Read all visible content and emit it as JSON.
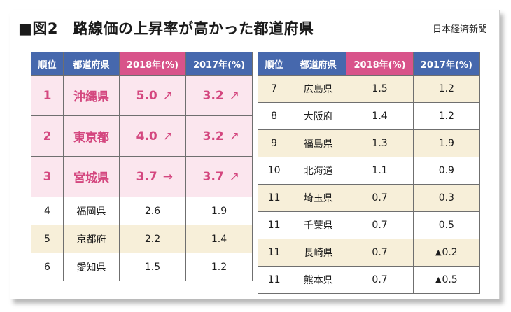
{
  "header": {
    "title": "■図2　路線価の上昇率が高かった都道府県",
    "source": "日本経済新聞"
  },
  "columns": {
    "rank": "順位",
    "prefecture": "都道府県",
    "y2018": "2018年(%)",
    "y2017": "2017年(%)"
  },
  "colors": {
    "header_blue": "#4668ad",
    "header_pink": "#d8538a",
    "highlight_text": "#d4477f",
    "top_row_bg": "#fbe6ee",
    "alt_row_bg": "#f7efd9"
  },
  "left_rows": [
    {
      "rank": "1",
      "name": "沖縄県",
      "v2018": "5.0",
      "t2018": "↗",
      "v2017": "3.2",
      "t2017": "↗"
    },
    {
      "rank": "2",
      "name": "東京都",
      "v2018": "4.0",
      "t2018": "↗",
      "v2017": "3.2",
      "t2017": "↗"
    },
    {
      "rank": "3",
      "name": "宮城県",
      "v2018": "3.7",
      "t2018": "→",
      "v2017": "3.7",
      "t2017": "↗"
    },
    {
      "rank": "4",
      "name": "福岡県",
      "v2018": "2.6",
      "v2017": "1.9"
    },
    {
      "rank": "5",
      "name": "京都府",
      "v2018": "2.2",
      "v2017": "1.4"
    },
    {
      "rank": "6",
      "name": "愛知県",
      "v2018": "1.5",
      "v2017": "1.2"
    }
  ],
  "right_rows": [
    {
      "rank": "7",
      "name": "広島県",
      "v2018": "1.5",
      "v2017": "1.2"
    },
    {
      "rank": "8",
      "name": "大阪府",
      "v2018": "1.4",
      "v2017": "1.2"
    },
    {
      "rank": "9",
      "name": "福島県",
      "v2018": "1.3",
      "v2017": "1.9"
    },
    {
      "rank": "10",
      "name": "北海道",
      "v2018": "1.1",
      "v2017": "0.9"
    },
    {
      "rank": "11",
      "name": "埼玉県",
      "v2018": "0.7",
      "v2017": "0.3"
    },
    {
      "rank": "11",
      "name": "千葉県",
      "v2018": "0.7",
      "v2017": "0.5"
    },
    {
      "rank": "11",
      "name": "長崎県",
      "v2018": "0.7",
      "v2017_mark": "▲",
      "v2017": "0.2"
    },
    {
      "rank": "11",
      "name": "熊本県",
      "v2018": "0.7",
      "v2017_mark": "▲",
      "v2017": "0.5"
    }
  ]
}
